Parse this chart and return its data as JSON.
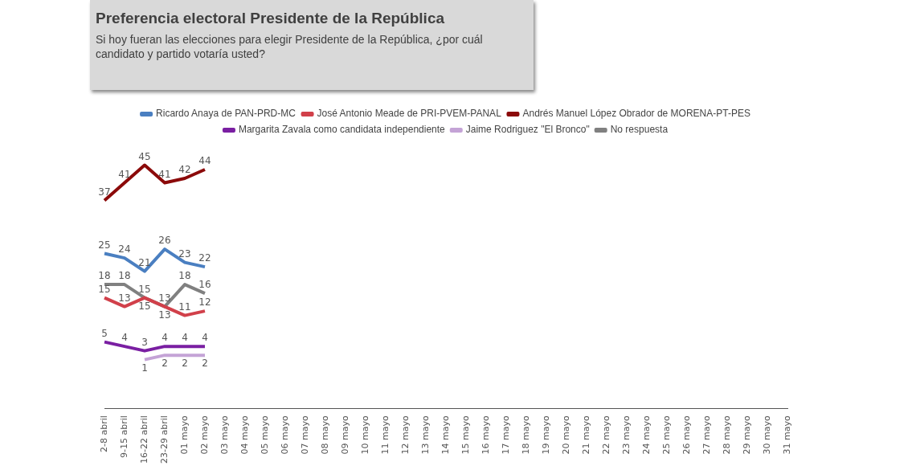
{
  "chart_data": {
    "type": "line",
    "title": "Preferencia electoral Presidente de la República",
    "subtitle": "Si hoy fueran las elecciones para elegir Presidente de la República, ¿por cuál candidato y partido votaría usted?",
    "categories": [
      "2-8 abril",
      "9-15 abril",
      "16-22 abril",
      "23-29 abril",
      "01 mayo",
      "02 mayo",
      "03 mayo",
      "04 mayo",
      "05 mayo",
      "06 mayo",
      "07 mayo",
      "08 mayo",
      "09 mayo",
      "10 mayo",
      "11 mayo",
      "12 mayo",
      "13 mayo",
      "14 mayo",
      "15 mayo",
      "16 mayo",
      "17 mayo",
      "18 mayo",
      "19 mayo",
      "20 mayo",
      "21 mayo",
      "22 mayo",
      "23 mayo",
      "24 mayo",
      "25 mayo",
      "26 mayo",
      "27 mayo",
      "28 mayo",
      "29 mayo",
      "30 mayo",
      "31 mayo"
    ],
    "series": [
      {
        "name": "Ricardo Anaya de PAN-PRD-MC",
        "color": "#4a7fc1",
        "values": [
          25,
          24,
          21,
          26,
          23,
          22,
          null,
          null,
          null,
          null,
          null,
          null,
          null,
          null,
          null,
          null,
          null,
          null,
          null,
          null,
          null,
          null,
          null,
          null,
          null,
          null,
          null,
          null,
          null,
          null,
          null,
          null,
          null,
          null,
          null
        ]
      },
      {
        "name": "José Antonio Meade de PRI-PVEM-PANAL",
        "color": "#d1404a",
        "values": [
          15,
          13,
          15,
          13,
          11,
          12,
          null,
          null,
          null,
          null,
          null,
          null,
          null,
          null,
          null,
          null,
          null,
          null,
          null,
          null,
          null,
          null,
          null,
          null,
          null,
          null,
          null,
          null,
          null,
          null,
          null,
          null,
          null,
          null,
          null
        ]
      },
      {
        "name": "Andrés Manuel López Obrador de MORENA-PT-PES",
        "color": "#8b0a0a",
        "values": [
          37,
          41,
          45,
          41,
          42,
          44,
          null,
          null,
          null,
          null,
          null,
          null,
          null,
          null,
          null,
          null,
          null,
          null,
          null,
          null,
          null,
          null,
          null,
          null,
          null,
          null,
          null,
          null,
          null,
          null,
          null,
          null,
          null,
          null,
          null
        ]
      },
      {
        "name": "Margarita Zavala como candidata independiente",
        "color": "#7a1fa2",
        "values": [
          5,
          4,
          3,
          4,
          4,
          4,
          null,
          null,
          null,
          null,
          null,
          null,
          null,
          null,
          null,
          null,
          null,
          null,
          null,
          null,
          null,
          null,
          null,
          null,
          null,
          null,
          null,
          null,
          null,
          null,
          null,
          null,
          null,
          null,
          null
        ]
      },
      {
        "name": "Jaime Rodriguez \"El Bronco\"",
        "color": "#c4a3d6",
        "values": [
          null,
          null,
          1,
          2,
          2,
          2,
          null,
          null,
          null,
          null,
          null,
          null,
          null,
          null,
          null,
          null,
          null,
          null,
          null,
          null,
          null,
          null,
          null,
          null,
          null,
          null,
          null,
          null,
          null,
          null,
          null,
          null,
          null,
          null,
          null
        ]
      },
      {
        "name": "No respuesta",
        "color": "#808080",
        "values": [
          18,
          18,
          15,
          13,
          18,
          16,
          null,
          null,
          null,
          null,
          null,
          null,
          null,
          null,
          null,
          null,
          null,
          null,
          null,
          null,
          null,
          null,
          null,
          null,
          null,
          null,
          null,
          null,
          null,
          null,
          null,
          null,
          null,
          null,
          null
        ]
      }
    ],
    "tick_labels": "x",
    "grid": false,
    "legend": "top",
    "data_labels": true,
    "marker": "none",
    "line_style": "solid"
  }
}
